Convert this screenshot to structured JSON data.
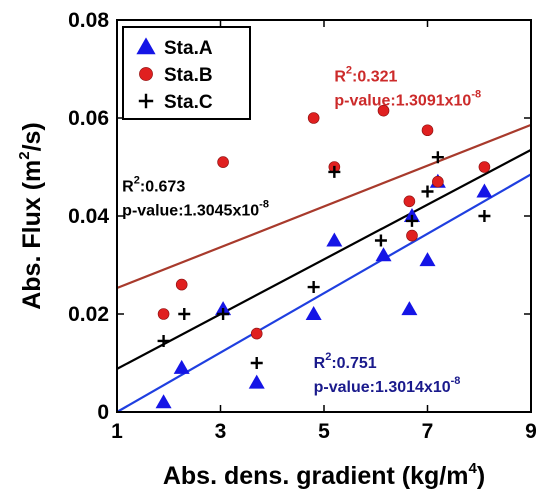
{
  "chart_data": {
    "type": "scatter",
    "x_axis": {
      "label": "Abs. dens. gradient (kg/m",
      "label_sup": "4",
      "label_end": ")",
      "range": [
        1,
        9
      ],
      "ticks": [
        "1",
        "3",
        "5",
        "7",
        "9"
      ],
      "tick_values": [
        1,
        3,
        5,
        7,
        9
      ]
    },
    "y_axis": {
      "label": "Abs. Flux (m",
      "label_sup": "2",
      "label_end": "/s)",
      "range": [
        0,
        0.08
      ],
      "ticks": [
        "0",
        "0.02",
        "0.04",
        "0.06",
        "0.08"
      ],
      "tick_values": [
        0,
        0.02,
        0.04,
        0.06,
        0.08
      ]
    },
    "grid": false,
    "legend_position": "top-left",
    "series": [
      {
        "name": "Sta.A",
        "marker": "triangle",
        "color": "#1515e6",
        "points": [
          [
            1.9,
            0.002
          ],
          [
            2.25,
            0.009
          ],
          [
            3.05,
            0.021
          ],
          [
            3.7,
            0.006
          ],
          [
            4.8,
            0.02
          ],
          [
            5.2,
            0.035
          ],
          [
            6.15,
            0.032
          ],
          [
            6.65,
            0.021
          ],
          [
            6.7,
            0.04
          ],
          [
            7.0,
            0.031
          ],
          [
            7.2,
            0.047
          ],
          [
            8.1,
            0.045
          ]
        ],
        "fit": {
          "x": [
            1,
            9
          ],
          "y": [
            0.0,
            0.0485
          ]
        },
        "annotation": {
          "r2_prefix": "R",
          "r2_sup": "2",
          "r2_value": ":0.751",
          "p_prefix": "p-value:1.3014x10",
          "p_exp": "-8",
          "color": "#1a1a8c",
          "at": [
            4.8,
            0.009
          ]
        }
      },
      {
        "name": "Sta.B",
        "marker": "circle",
        "color": "#e02020",
        "points": [
          [
            1.9,
            0.02
          ],
          [
            2.25,
            0.026
          ],
          [
            3.05,
            0.051
          ],
          [
            3.7,
            0.016
          ],
          [
            4.8,
            0.06
          ],
          [
            5.2,
            0.05
          ],
          [
            6.15,
            0.0615
          ],
          [
            6.65,
            0.043
          ],
          [
            6.7,
            0.036
          ],
          [
            7.0,
            0.0575
          ],
          [
            7.2,
            0.047
          ],
          [
            8.1,
            0.05
          ]
        ],
        "fit": {
          "x": [
            1,
            9
          ],
          "y": [
            0.0253,
            0.0586
          ]
        },
        "annotation": {
          "r2_prefix": "R",
          "r2_sup": "2",
          "r2_value": ":0.321",
          "p_prefix": "p-value:1.3091x10",
          "p_exp": "-8",
          "color": "#cc2a2a",
          "at": [
            5.2,
            0.0675
          ]
        }
      },
      {
        "name": "Sta.C",
        "marker": "plus",
        "color": "#000000",
        "points": [
          [
            1.9,
            0.0145
          ],
          [
            2.3,
            0.02
          ],
          [
            3.05,
            0.02
          ],
          [
            3.7,
            0.01
          ],
          [
            4.8,
            0.0255
          ],
          [
            5.2,
            0.049
          ],
          [
            6.1,
            0.035
          ],
          [
            6.7,
            0.039
          ],
          [
            7.0,
            0.045
          ],
          [
            7.2,
            0.052
          ],
          [
            8.1,
            0.04
          ]
        ],
        "fit": {
          "x": [
            1,
            9
          ],
          "y": [
            0.0088,
            0.0535
          ]
        },
        "annotation": {
          "r2_prefix": "R",
          "r2_sup": "2",
          "r2_value": ":0.673",
          "p_prefix": "p-value:1.3045x10",
          "p_exp": "-8",
          "color": "#000000",
          "at": [
            1.1,
            0.045
          ]
        }
      }
    ]
  }
}
